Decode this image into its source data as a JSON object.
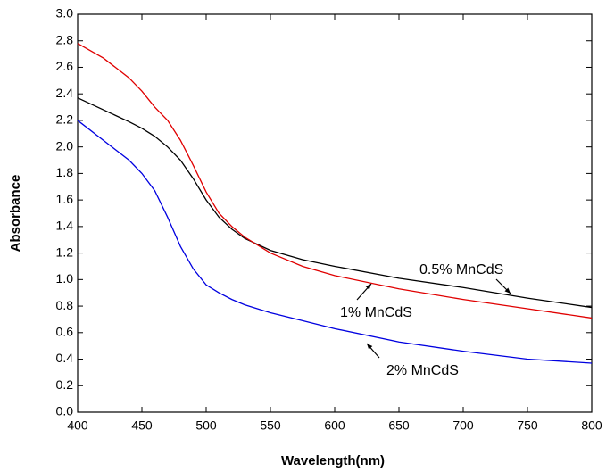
{
  "chart_data": {
    "type": "line",
    "x_label": "Wavelength(nm)",
    "y_label": "Absorbance",
    "x": [
      400,
      420,
      440,
      450,
      460,
      470,
      480,
      490,
      500,
      510,
      520,
      530,
      550,
      575,
      600,
      650,
      700,
      750,
      800
    ],
    "series": [
      {
        "name": "0.5% MnCdS",
        "color": "#000000",
        "values": [
          2.37,
          2.28,
          2.19,
          2.14,
          2.08,
          2.0,
          1.9,
          1.76,
          1.6,
          1.47,
          1.38,
          1.31,
          1.22,
          1.15,
          1.1,
          1.01,
          0.94,
          0.86,
          0.79
        ]
      },
      {
        "name": "1% MnCdS",
        "color": "#e00000",
        "values": [
          2.78,
          2.67,
          2.52,
          2.42,
          2.3,
          2.2,
          2.05,
          1.86,
          1.66,
          1.5,
          1.4,
          1.32,
          1.2,
          1.1,
          1.03,
          0.93,
          0.85,
          0.78,
          0.71
        ]
      },
      {
        "name": "2% MnCdS",
        "color": "#0000e0",
        "values": [
          2.2,
          2.05,
          1.9,
          1.8,
          1.67,
          1.47,
          1.25,
          1.08,
          0.96,
          0.9,
          0.85,
          0.81,
          0.75,
          0.69,
          0.63,
          0.53,
          0.46,
          0.4,
          0.37
        ]
      }
    ],
    "xlim": [
      400,
      800
    ],
    "xticks": [
      400,
      450,
      500,
      550,
      600,
      650,
      700,
      750,
      800
    ],
    "ylim": [
      0,
      3
    ],
    "yticks": [
      {
        "value": 0,
        "label": "0.0"
      },
      0.2,
      0.4,
      0.6,
      0.8,
      {
        "value": 1,
        "label": "1.0"
      },
      1.2,
      1.4,
      1.6,
      1.8,
      {
        "value": 2,
        "label": "2.0"
      },
      2.2,
      2.4,
      2.6,
      2.8,
      {
        "value": 3,
        "label": "3.0"
      }
    ]
  }
}
